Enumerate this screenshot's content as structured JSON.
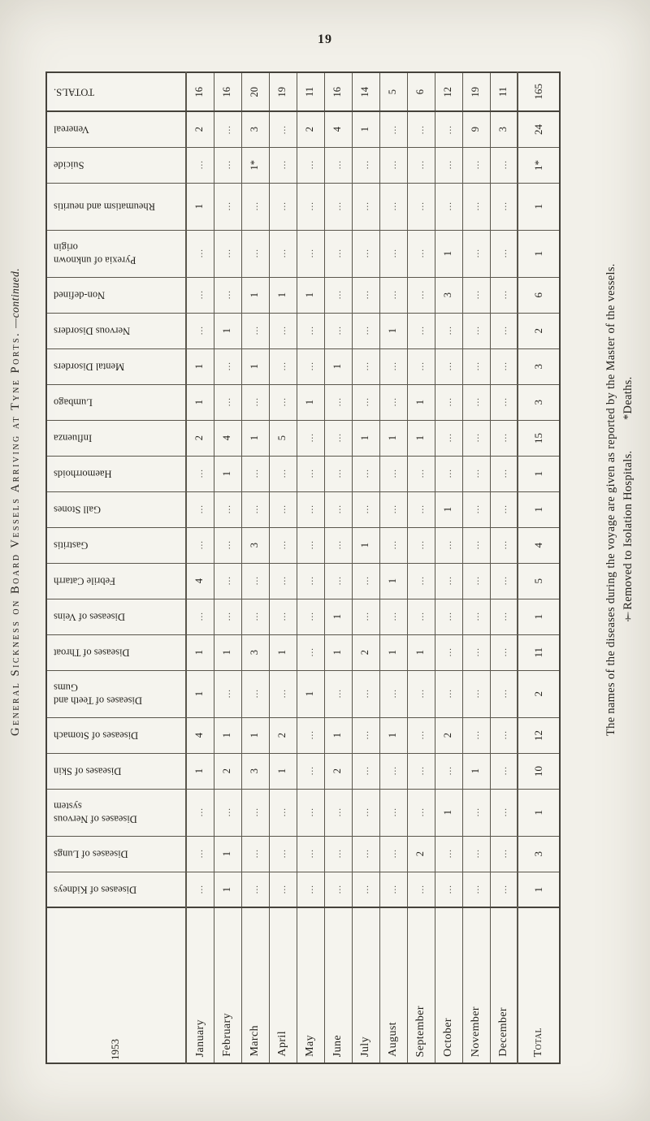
{
  "page": {
    "number": "19",
    "side_title": "General Sickness on Board Vessels Arriving at Tyne Ports.",
    "side_title_continued": "—continued.",
    "note": "The names of the diseases during the voyage are given as reported by the Master of the vessels.",
    "note_dagger": "†Removed to Isolation Hospitals.",
    "note_asterisk": "*Deaths."
  },
  "table": {
    "year_label": "1953",
    "months": [
      "January",
      "February",
      "March",
      "April",
      "May",
      "June",
      "July",
      "August",
      "September",
      "October",
      "November",
      "December"
    ],
    "total_column_label": "Total",
    "empty_cell_marker": "...",
    "totals_row": {
      "label": "TOTALS.",
      "values": [
        "16",
        "16",
        "20",
        "19",
        "11",
        "16",
        "14",
        "5",
        "6",
        "12",
        "19",
        "11"
      ],
      "total": "165"
    },
    "rows": [
      {
        "label": "Venereal",
        "values": [
          "2",
          "",
          "3",
          "",
          "2",
          "4",
          "1",
          "",
          "",
          "",
          "9",
          "3"
        ],
        "total": "24"
      },
      {
        "label": "Suicide",
        "values": [
          "",
          "",
          "1*",
          "",
          "",
          "",
          "",
          "",
          "",
          "",
          "",
          ""
        ],
        "total": "1*"
      },
      {
        "label": "Rheumatism and neuritis",
        "values": [
          "1",
          "",
          "",
          "",
          "",
          "",
          "",
          "",
          "",
          "",
          "",
          ""
        ],
        "total": "1"
      },
      {
        "label": "Pyrexia of unknown origin",
        "values": [
          "",
          "",
          "",
          "",
          "",
          "",
          "",
          "",
          "",
          "1",
          "",
          ""
        ],
        "total": "1"
      },
      {
        "label": "Non-defined",
        "values": [
          "",
          "",
          "1",
          "1",
          "1",
          "",
          "",
          "",
          "",
          "3",
          "",
          ""
        ],
        "total": "6"
      },
      {
        "label": "Nervous Disorders",
        "values": [
          "",
          "1",
          "",
          "",
          "",
          "",
          "",
          "1",
          "",
          "",
          "",
          ""
        ],
        "total": "2"
      },
      {
        "label": "Mental Disorders",
        "values": [
          "1",
          "",
          "1",
          "",
          "",
          "1",
          "",
          "",
          "",
          "",
          "",
          ""
        ],
        "total": "3"
      },
      {
        "label": "Lumbago",
        "values": [
          "1",
          "",
          "",
          "",
          "1",
          "",
          "",
          "",
          "1",
          "",
          "",
          ""
        ],
        "total": "3"
      },
      {
        "label": "Influenza",
        "values": [
          "2",
          "4",
          "1",
          "5",
          "",
          "",
          "1",
          "1",
          "1",
          "",
          "",
          ""
        ],
        "total": "15"
      },
      {
        "label": "Haemorrhoids",
        "values": [
          "",
          "1",
          "",
          "",
          "",
          "",
          "",
          "",
          "",
          "",
          "",
          ""
        ],
        "total": "1"
      },
      {
        "label": "Gall Stones",
        "values": [
          "",
          "",
          "",
          "",
          "",
          "",
          "",
          "",
          "",
          "1",
          "",
          ""
        ],
        "total": "1"
      },
      {
        "label": "Gastritis",
        "values": [
          "",
          "",
          "3",
          "",
          "",
          "",
          "1",
          "",
          "",
          "",
          "",
          ""
        ],
        "total": "4"
      },
      {
        "label": "Febrile Catarrh",
        "values": [
          "4",
          "",
          "",
          "",
          "",
          "",
          "",
          "1",
          "",
          "",
          "",
          ""
        ],
        "total": "5"
      },
      {
        "label": "Diseases of Veins",
        "values": [
          "",
          "",
          "",
          "",
          "",
          "1",
          "",
          "",
          "",
          "",
          "",
          ""
        ],
        "total": "1"
      },
      {
        "label": "Diseases of Throat",
        "values": [
          "1",
          "1",
          "3",
          "1",
          "",
          "1",
          "2",
          "1",
          "1",
          "",
          "",
          ""
        ],
        "total": "11"
      },
      {
        "label": "Diseases of Teeth and Gums",
        "values": [
          "1",
          "",
          "",
          "",
          "1",
          "",
          "",
          "",
          "",
          "",
          "",
          ""
        ],
        "total": "2"
      },
      {
        "label": "Diseases of Stomach",
        "values": [
          "4",
          "1",
          "1",
          "2",
          "",
          "1",
          "",
          "1",
          "",
          "2",
          "",
          ""
        ],
        "total": "12"
      },
      {
        "label": "Diseases of Skin",
        "values": [
          "1",
          "2",
          "3",
          "1",
          "",
          "2",
          "",
          "",
          "",
          "",
          "1",
          ""
        ],
        "total": "10"
      },
      {
        "label": "Diseases of Nervous system",
        "values": [
          "",
          "",
          "",
          "",
          "",
          "",
          "",
          "",
          "",
          "1",
          "",
          ""
        ],
        "total": "1"
      },
      {
        "label": "Diseases of Lungs",
        "values": [
          "",
          "1",
          "",
          "",
          "",
          "",
          "",
          "",
          "2",
          "",
          "",
          ""
        ],
        "total": "3"
      },
      {
        "label": "Diseases of Kidneys",
        "values": [
          "",
          "1",
          "",
          "",
          "",
          "",
          "",
          "",
          "",
          "",
          "",
          ""
        ],
        "total": "1"
      }
    ]
  }
}
